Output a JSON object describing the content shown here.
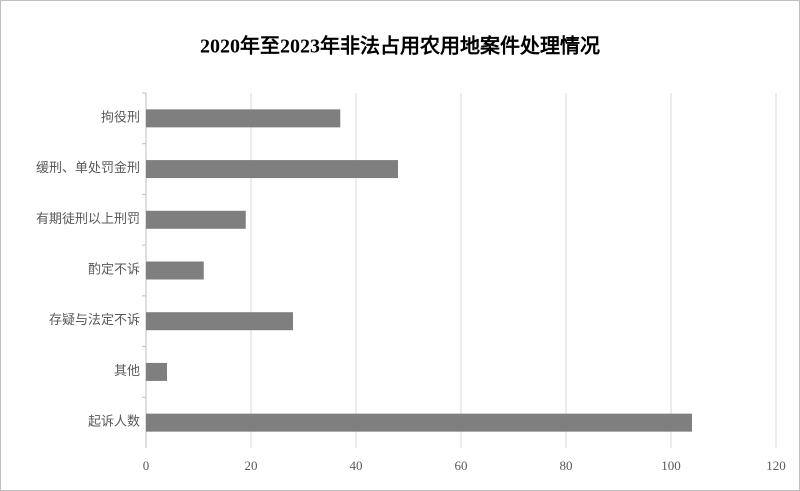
{
  "chart_data": {
    "type": "bar",
    "orientation": "horizontal",
    "title": "2020年至2023年非法占用农用地案件处理情况",
    "categories": [
      "拘役刑",
      "缓刑、单处罚金刑",
      "有期徒刑以上刑罚",
      "酌定不诉",
      "存疑与法定不诉",
      "其他",
      "起诉人数"
    ],
    "values": [
      37,
      48,
      19,
      11,
      28,
      4,
      104
    ],
    "color": "#7f7f7f",
    "xlim": [
      0,
      120
    ],
    "xticks": [
      0,
      20,
      40,
      60,
      80,
      100,
      120
    ],
    "grid": true
  }
}
